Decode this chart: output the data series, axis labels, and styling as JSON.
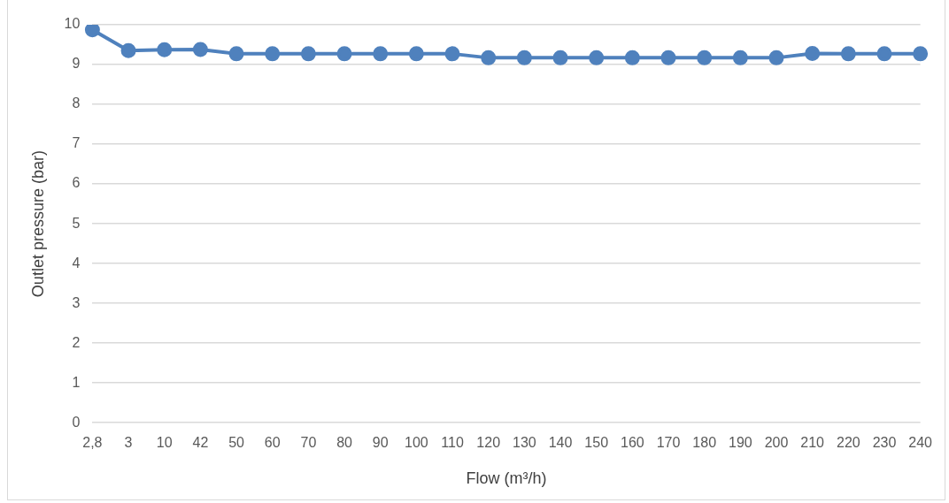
{
  "chart_data": {
    "type": "line",
    "xlabel": "Flow (m³/h)",
    "ylabel": "Outlet pressure (bar)",
    "categories": [
      "2,8",
      "3",
      "10",
      "42",
      "50",
      "60",
      "70",
      "80",
      "90",
      "100",
      "110",
      "120",
      "130",
      "140",
      "150",
      "160",
      "170",
      "180",
      "190",
      "200",
      "210",
      "220",
      "230",
      "240"
    ],
    "series": [
      {
        "color": "#4f81bd",
        "values": [
          9.87,
          9.35,
          9.37,
          9.38,
          9.27,
          9.27,
          9.27,
          9.27,
          9.27,
          9.27,
          9.27,
          9.17,
          9.17,
          9.17,
          9.17,
          9.17,
          9.17,
          9.17,
          9.17,
          9.17,
          9.28,
          9.27,
          9.27,
          9.27
        ]
      }
    ],
    "ylim": [
      0,
      10
    ],
    "yticks": [
      0,
      1,
      2,
      3,
      4,
      5,
      6,
      7,
      8,
      9,
      10
    ],
    "grid": "y",
    "legend": false,
    "marker": "circle",
    "line_style": "solid"
  }
}
